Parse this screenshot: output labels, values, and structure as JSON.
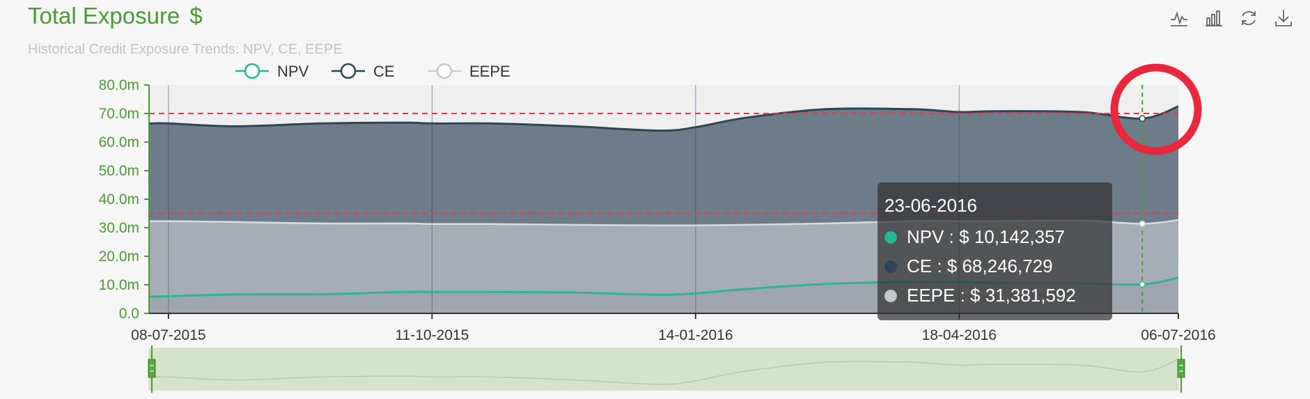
{
  "header": {
    "title": "Total Exposure",
    "currency": "$",
    "subtitle": "Historical Credit Exposure Trends: NPV, CE, EEPE"
  },
  "toolbox": [
    {
      "name": "line-chart-icon"
    },
    {
      "name": "bar-chart-icon"
    },
    {
      "name": "refresh-icon"
    },
    {
      "name": "download-icon"
    }
  ],
  "chart_data": {
    "type": "area",
    "legend": [
      "NPV",
      "CE",
      "EEPE"
    ],
    "legend_placement": "top",
    "x_tick_labels": [
      "08-07-2015",
      "11-10-2015",
      "14-01-2016",
      "18-04-2016",
      "06-07-2016"
    ],
    "x": [
      "01-07-2015",
      "08-07-2015",
      "01-08-2015",
      "01-09-2015",
      "01-10-2015",
      "11-10-2015",
      "01-11-2015",
      "01-12-2015",
      "01-01-2016",
      "14-01-2016",
      "01-02-2016",
      "01-03-2016",
      "01-04-2016",
      "18-04-2016",
      "01-05-2016",
      "01-06-2016",
      "23-06-2016",
      "06-07-2016"
    ],
    "series": [
      {
        "name": "NPV",
        "color": "#2bb693",
        "values": [
          5.8,
          6.0,
          6.6,
          6.7,
          7.5,
          7.5,
          7.5,
          7.3,
          6.5,
          7.0,
          8.5,
          10.3,
          11.0,
          11.0,
          10.7,
          10.5,
          10.14,
          12.5
        ]
      },
      {
        "name": "CE",
        "color": "#2f4554",
        "values": [
          66.5,
          66.5,
          65.5,
          66.5,
          66.8,
          66.5,
          66.5,
          65.5,
          64.0,
          65.2,
          68.5,
          71.5,
          71.5,
          70.5,
          70.8,
          70.5,
          68.25,
          72.5
        ]
      },
      {
        "name": "EEPE",
        "color": "#c4c9ce",
        "values": [
          32.3,
          32.3,
          32.0,
          31.5,
          31.5,
          31.3,
          31.3,
          31.0,
          30.8,
          30.8,
          31.0,
          31.5,
          32.3,
          32.3,
          32.3,
          32.5,
          31.38,
          32.7
        ]
      }
    ],
    "ylim": [
      0,
      80
    ],
    "y_tick_labels": [
      "0.0",
      "10.0m",
      "20.0m",
      "30.0m",
      "40.0m",
      "50.0m",
      "60.0m",
      "70.0m",
      "80.0m"
    ],
    "reference_lines": [
      70,
      35
    ],
    "grid": true
  },
  "tooltip": {
    "date": "23-06-2016",
    "rows": [
      {
        "label": "NPV : $ 10,142,357",
        "color": "#2bb693"
      },
      {
        "label": "CE : $ 68,246,729",
        "color": "#2f4554"
      },
      {
        "label": "EEPE : $ 31,381,592",
        "color": "#c4c9ce"
      }
    ]
  },
  "highlight_color": "#e8283c"
}
